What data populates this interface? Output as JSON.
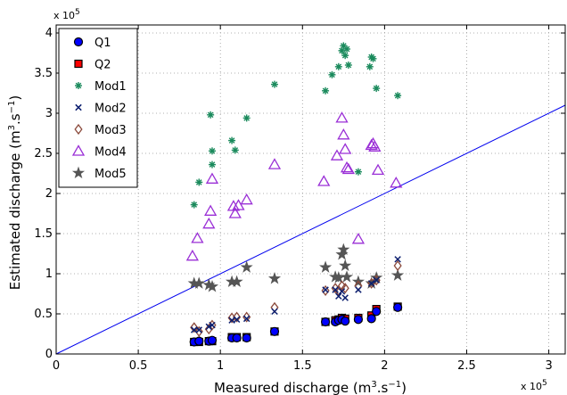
{
  "chart_data": {
    "type": "scatter",
    "title": "",
    "xlabel_main": "Measured discharge (m",
    "xlabel_sup": "3",
    "xlabel_mid": ".s",
    "xlabel_sup2": "−1",
    "xlabel_end": ")",
    "ylabel_main": "Estimated discharge (m",
    "ylabel_sup": "3",
    "ylabel_mid": ".s",
    "ylabel_sup2": "−1",
    "ylabel_end": ")",
    "x_multiplier": "x 10",
    "x_multiplier_exp": "5",
    "y_multiplier": "x 10",
    "y_multiplier_exp": "5",
    "xlim": [
      0,
      3.1
    ],
    "ylim": [
      0,
      4.1
    ],
    "units_scale": 100000,
    "xticks": [
      0,
      0.5,
      1,
      1.5,
      2,
      2.5,
      3
    ],
    "xtick_labels": [
      "0",
      "0.5",
      "1",
      "1.5",
      "2",
      "2.5",
      "3"
    ],
    "yticks": [
      0,
      0.5,
      1,
      1.5,
      2,
      2.5,
      3,
      3.5,
      4
    ],
    "ytick_labels": [
      "0",
      "0.5",
      "1",
      "1.5",
      "2",
      "2.5",
      "3",
      "3.5",
      "4"
    ],
    "grid": true,
    "legend_position": "top-left",
    "reference_line": {
      "x": [
        0,
        3.1
      ],
      "y": [
        0,
        3.1
      ],
      "color": "#0000ee"
    },
    "series": [
      {
        "name": "Q1",
        "marker": "circle",
        "color": "#0000ff",
        "edge": "#000000",
        "x": [
          0.84,
          0.87,
          0.93,
          0.95,
          1.07,
          1.1,
          1.16,
          1.33,
          1.64,
          1.7,
          1.72,
          1.74,
          1.76,
          1.84,
          1.92,
          1.95,
          2.08
        ],
        "y": [
          0.15,
          0.16,
          0.16,
          0.17,
          0.2,
          0.2,
          0.2,
          0.28,
          0.4,
          0.4,
          0.42,
          0.43,
          0.41,
          0.43,
          0.44,
          0.53,
          0.58
        ]
      },
      {
        "name": "Q2",
        "marker": "square",
        "color": "#ff0000",
        "edge": "#000000",
        "x": [
          0.84,
          0.87,
          0.93,
          0.95,
          1.07,
          1.1,
          1.16,
          1.33,
          1.64,
          1.7,
          1.72,
          1.74,
          1.76,
          1.84,
          1.92,
          1.95,
          2.08
        ],
        "y": [
          0.15,
          0.15,
          0.16,
          0.16,
          0.21,
          0.21,
          0.21,
          0.28,
          0.4,
          0.42,
          0.43,
          0.45,
          0.44,
          0.45,
          0.48,
          0.56,
          0.59
        ]
      },
      {
        "name": "Mod1",
        "marker": "asterisk",
        "color": "#1a8a5c",
        "x": [
          0.84,
          0.87,
          0.94,
          0.95,
          0.95,
          1.07,
          1.09,
          1.16,
          1.33,
          1.64,
          1.68,
          1.72,
          1.74,
          1.75,
          1.76,
          1.77,
          1.78,
          1.84,
          1.91,
          1.92,
          1.93,
          1.95,
          2.08
        ],
        "y": [
          1.86,
          2.14,
          2.98,
          2.53,
          2.36,
          2.66,
          2.54,
          2.94,
          3.36,
          3.28,
          3.48,
          3.58,
          3.78,
          3.84,
          3.72,
          3.8,
          3.6,
          2.27,
          3.58,
          3.7,
          3.68,
          3.31,
          3.22
        ]
      },
      {
        "name": "Mod2",
        "marker": "x",
        "color": "#0b1e6e",
        "x": [
          0.84,
          0.87,
          0.93,
          0.95,
          1.07,
          1.1,
          1.16,
          1.33,
          1.64,
          1.7,
          1.72,
          1.74,
          1.76,
          1.84,
          1.92,
          1.95,
          2.08
        ],
        "y": [
          0.3,
          0.3,
          0.34,
          0.36,
          0.42,
          0.43,
          0.44,
          0.53,
          0.8,
          0.8,
          0.72,
          0.78,
          0.7,
          0.8,
          0.88,
          0.92,
          1.18
        ]
      },
      {
        "name": "Mod3",
        "marker": "diamond",
        "color": "#8b4a3c",
        "x": [
          0.84,
          0.87,
          0.93,
          0.95,
          1.07,
          1.1,
          1.16,
          1.33,
          1.64,
          1.7,
          1.72,
          1.74,
          1.76,
          1.84,
          1.92,
          1.95,
          2.08
        ],
        "y": [
          0.33,
          0.28,
          0.31,
          0.36,
          0.45,
          0.46,
          0.46,
          0.58,
          0.79,
          0.82,
          0.79,
          0.85,
          0.82,
          0.85,
          0.88,
          0.92,
          1.1
        ]
      },
      {
        "name": "Mod4",
        "marker": "triangle",
        "color": "#9a2fd6",
        "x": [
          0.83,
          0.86,
          0.93,
          0.94,
          0.95,
          1.08,
          1.09,
          1.11,
          1.16,
          1.33,
          1.63,
          1.71,
          1.74,
          1.75,
          1.76,
          1.77,
          1.78,
          1.84,
          1.92,
          1.93,
          1.94,
          1.96,
          2.07
        ],
        "y": [
          1.22,
          1.44,
          1.62,
          1.78,
          2.18,
          1.84,
          1.75,
          1.85,
          1.92,
          2.36,
          2.15,
          2.47,
          2.94,
          2.73,
          2.55,
          2.32,
          2.3,
          1.43,
          2.6,
          2.62,
          2.58,
          2.29,
          2.13
        ]
      },
      {
        "name": "Mod5",
        "marker": "star",
        "color": "#555555",
        "x": [
          0.84,
          0.87,
          0.93,
          0.95,
          1.07,
          1.1,
          1.16,
          1.33,
          1.64,
          1.7,
          1.72,
          1.74,
          1.75,
          1.76,
          1.77,
          1.84,
          1.92,
          1.95,
          2.08
        ],
        "y": [
          0.88,
          0.88,
          0.86,
          0.84,
          0.9,
          0.9,
          1.08,
          0.94,
          1.08,
          0.96,
          0.95,
          1.24,
          1.3,
          1.1,
          0.96,
          0.9,
          0.88,
          0.95,
          0.98
        ]
      }
    ]
  }
}
